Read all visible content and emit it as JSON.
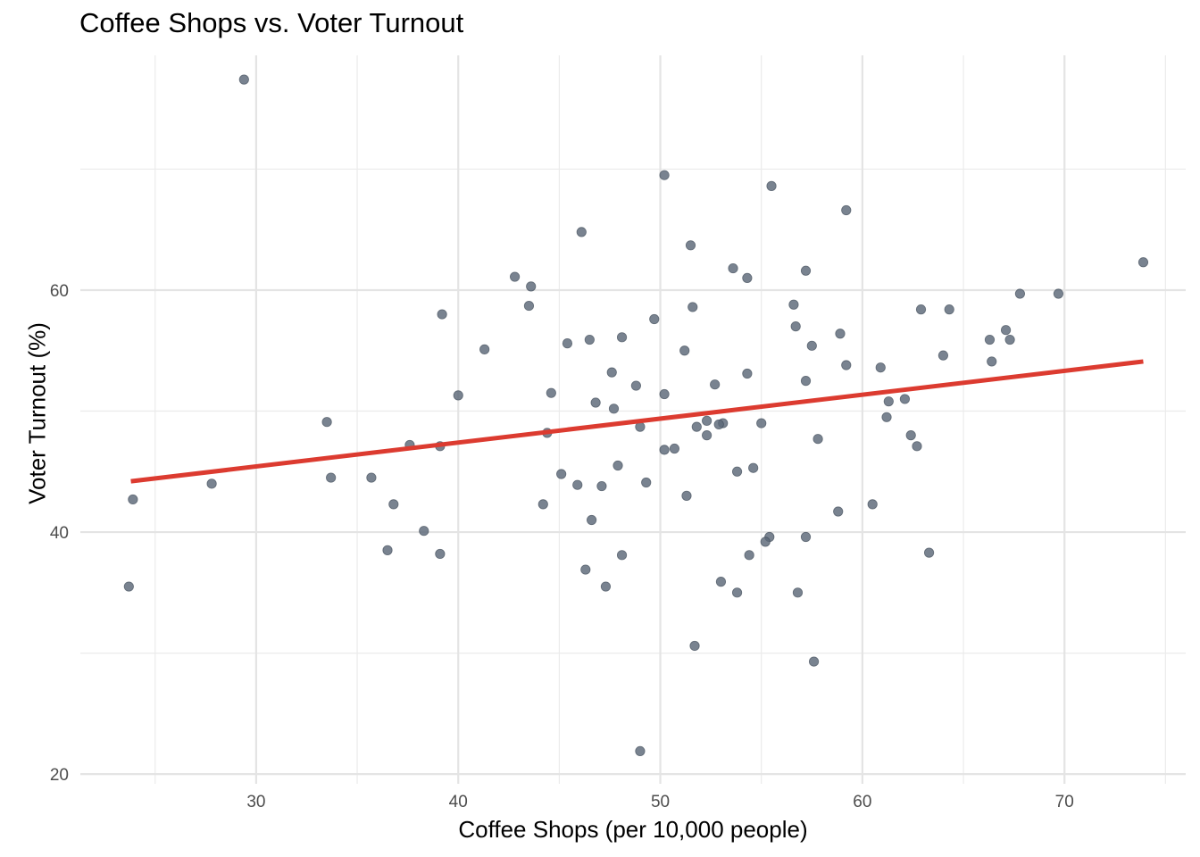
{
  "chart_data": {
    "type": "scatter",
    "title": "Coffee Shops vs. Voter Turnout",
    "xlabel": "Coffee Shops (per 10,000 people)",
    "ylabel": "Voter Turnout (%)",
    "xlim": [
      21.3,
      76.0
    ],
    "ylim": [
      19.2,
      79.4
    ],
    "x_ticks": [
      30,
      40,
      50,
      60,
      70
    ],
    "x_minor_ticks": [
      25,
      35,
      45,
      55,
      65,
      75
    ],
    "y_ticks": [
      20,
      40,
      60
    ],
    "y_minor_ticks": [
      30,
      50,
      70
    ],
    "grid": true,
    "point_color": "#5b6878",
    "trend_color": "#dc3b30",
    "trend_line": {
      "x": [
        23.8,
        73.9
      ],
      "y": [
        44.2,
        54.1
      ]
    },
    "points": [
      {
        "x": 29.4,
        "y": 77.4
      },
      {
        "x": 50.2,
        "y": 69.5
      },
      {
        "x": 55.5,
        "y": 68.6
      },
      {
        "x": 59.2,
        "y": 66.6
      },
      {
        "x": 46.1,
        "y": 64.8
      },
      {
        "x": 51.5,
        "y": 63.7
      },
      {
        "x": 53.6,
        "y": 61.8
      },
      {
        "x": 57.2,
        "y": 61.6
      },
      {
        "x": 73.9,
        "y": 62.3
      },
      {
        "x": 42.8,
        "y": 61.1
      },
      {
        "x": 54.3,
        "y": 61.0
      },
      {
        "x": 43.6,
        "y": 60.3
      },
      {
        "x": 67.8,
        "y": 59.7
      },
      {
        "x": 69.7,
        "y": 59.7
      },
      {
        "x": 43.5,
        "y": 58.7
      },
      {
        "x": 51.6,
        "y": 58.6
      },
      {
        "x": 56.6,
        "y": 58.8
      },
      {
        "x": 39.2,
        "y": 58.0
      },
      {
        "x": 62.9,
        "y": 58.4
      },
      {
        "x": 64.3,
        "y": 58.4
      },
      {
        "x": 49.7,
        "y": 57.6
      },
      {
        "x": 56.7,
        "y": 57.0
      },
      {
        "x": 67.1,
        "y": 56.7
      },
      {
        "x": 58.9,
        "y": 56.4
      },
      {
        "x": 48.1,
        "y": 56.1
      },
      {
        "x": 46.5,
        "y": 55.9
      },
      {
        "x": 66.3,
        "y": 55.9
      },
      {
        "x": 67.3,
        "y": 55.9
      },
      {
        "x": 45.4,
        "y": 55.6
      },
      {
        "x": 57.5,
        "y": 55.4
      },
      {
        "x": 41.3,
        "y": 55.1
      },
      {
        "x": 51.2,
        "y": 55.0
      },
      {
        "x": 64.0,
        "y": 54.6
      },
      {
        "x": 66.4,
        "y": 54.1
      },
      {
        "x": 59.2,
        "y": 53.8
      },
      {
        "x": 60.9,
        "y": 53.6
      },
      {
        "x": 47.6,
        "y": 53.2
      },
      {
        "x": 54.3,
        "y": 53.1
      },
      {
        "x": 57.2,
        "y": 52.5
      },
      {
        "x": 48.8,
        "y": 52.1
      },
      {
        "x": 52.7,
        "y": 52.2
      },
      {
        "x": 44.6,
        "y": 51.5
      },
      {
        "x": 40.0,
        "y": 51.3
      },
      {
        "x": 50.2,
        "y": 51.4
      },
      {
        "x": 62.1,
        "y": 51.0
      },
      {
        "x": 46.8,
        "y": 50.7
      },
      {
        "x": 61.3,
        "y": 50.8
      },
      {
        "x": 47.7,
        "y": 50.2
      },
      {
        "x": 61.2,
        "y": 49.5
      },
      {
        "x": 33.5,
        "y": 49.1
      },
      {
        "x": 52.3,
        "y": 49.2
      },
      {
        "x": 55.0,
        "y": 49.0
      },
      {
        "x": 53.1,
        "y": 49.0
      },
      {
        "x": 52.9,
        "y": 48.9
      },
      {
        "x": 49.0,
        "y": 48.7
      },
      {
        "x": 51.8,
        "y": 48.7
      },
      {
        "x": 44.4,
        "y": 48.2
      },
      {
        "x": 52.3,
        "y": 48.0
      },
      {
        "x": 62.4,
        "y": 48.0
      },
      {
        "x": 57.8,
        "y": 47.7
      },
      {
        "x": 37.6,
        "y": 47.2
      },
      {
        "x": 39.1,
        "y": 47.1
      },
      {
        "x": 62.7,
        "y": 47.1
      },
      {
        "x": 50.7,
        "y": 46.9
      },
      {
        "x": 50.2,
        "y": 46.8
      },
      {
        "x": 47.9,
        "y": 45.5
      },
      {
        "x": 54.6,
        "y": 45.3
      },
      {
        "x": 53.8,
        "y": 45.0
      },
      {
        "x": 45.1,
        "y": 44.8
      },
      {
        "x": 33.7,
        "y": 44.5
      },
      {
        "x": 35.7,
        "y": 44.5
      },
      {
        "x": 27.8,
        "y": 44.0
      },
      {
        "x": 49.3,
        "y": 44.1
      },
      {
        "x": 45.9,
        "y": 43.9
      },
      {
        "x": 47.1,
        "y": 43.8
      },
      {
        "x": 51.3,
        "y": 43.0
      },
      {
        "x": 23.9,
        "y": 42.7
      },
      {
        "x": 36.8,
        "y": 42.3
      },
      {
        "x": 44.2,
        "y": 42.3
      },
      {
        "x": 60.5,
        "y": 42.3
      },
      {
        "x": 58.8,
        "y": 41.7
      },
      {
        "x": 46.6,
        "y": 41.0
      },
      {
        "x": 38.3,
        "y": 40.1
      },
      {
        "x": 55.4,
        "y": 39.6
      },
      {
        "x": 57.2,
        "y": 39.6
      },
      {
        "x": 55.2,
        "y": 39.2
      },
      {
        "x": 36.5,
        "y": 38.5
      },
      {
        "x": 39.1,
        "y": 38.2
      },
      {
        "x": 48.1,
        "y": 38.1
      },
      {
        "x": 54.4,
        "y": 38.1
      },
      {
        "x": 63.3,
        "y": 38.3
      },
      {
        "x": 46.3,
        "y": 36.9
      },
      {
        "x": 53.0,
        "y": 35.9
      },
      {
        "x": 23.7,
        "y": 35.5
      },
      {
        "x": 47.3,
        "y": 35.5
      },
      {
        "x": 53.8,
        "y": 35.0
      },
      {
        "x": 56.8,
        "y": 35.0
      },
      {
        "x": 51.7,
        "y": 30.6
      },
      {
        "x": 57.6,
        "y": 29.3
      },
      {
        "x": 49.0,
        "y": 21.9
      }
    ]
  }
}
